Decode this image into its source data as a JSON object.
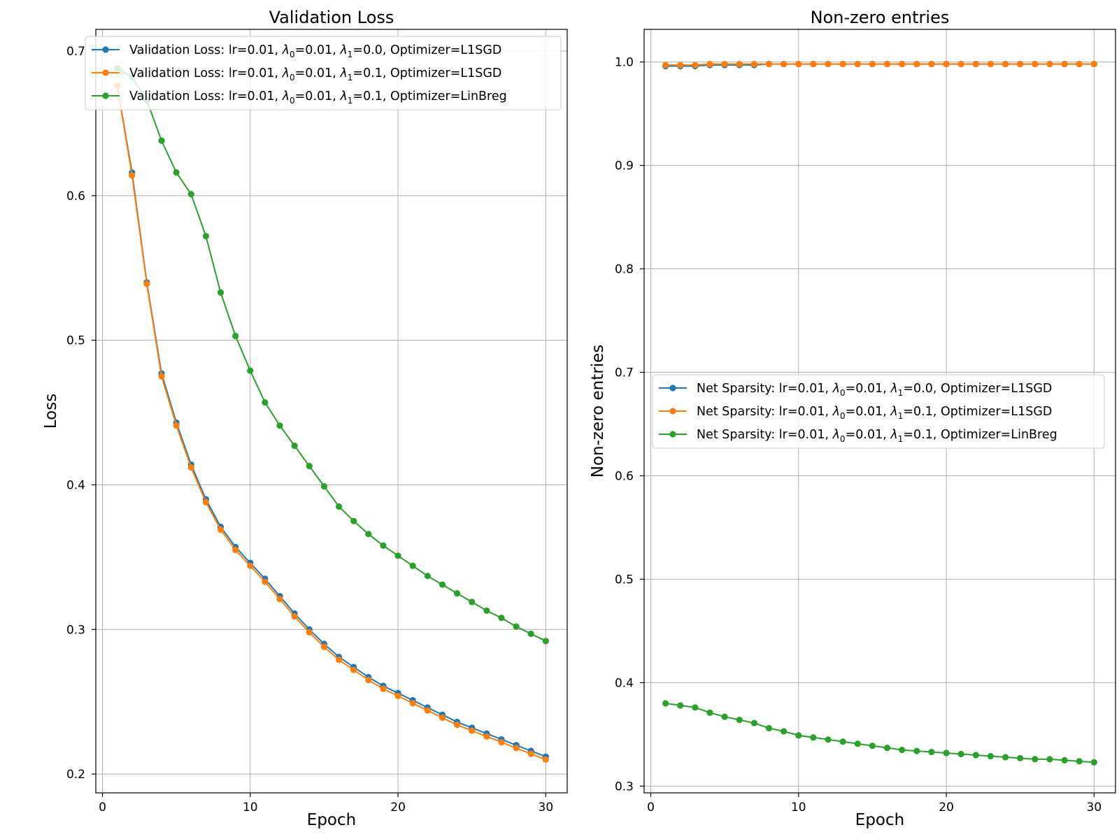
{
  "chart_data": [
    {
      "type": "line",
      "title": "Validation Loss",
      "xlabel": "Epoch",
      "ylabel": "Loss",
      "xlim": [
        -0.45,
        31.45
      ],
      "ylim": [
        0.187,
        0.715
      ],
      "xticks": [
        0,
        10,
        20,
        30
      ],
      "yticks": [
        0.2,
        0.3,
        0.4,
        0.5,
        0.6,
        0.7
      ],
      "ytick_labels": [
        "0.2",
        "0.3",
        "0.4",
        "0.5",
        "0.6",
        "0.7"
      ],
      "grid": true,
      "legend_position": "upper-right",
      "x": [
        1,
        2,
        3,
        4,
        5,
        6,
        7,
        8,
        9,
        10,
        11,
        12,
        13,
        14,
        15,
        16,
        17,
        18,
        19,
        20,
        21,
        22,
        23,
        24,
        25,
        26,
        27,
        28,
        29,
        30
      ],
      "series": [
        {
          "name": "Validation Loss: lr=0.01, λ0=0.01, λ1=0.0, Optimizer=L1SGD",
          "legend": {
            "prefix": "Validation Loss: lr=0.01, ",
            "s1": "0",
            "mid": "=0.01, ",
            "s2": "1",
            "suffix": "=0.0, Optimizer=L1SGD"
          },
          "color": "#1f77b4",
          "values": [
            0.676,
            0.616,
            0.54,
            0.477,
            0.443,
            0.414,
            0.39,
            0.371,
            0.357,
            0.346,
            0.335,
            0.323,
            0.311,
            0.3,
            0.29,
            0.281,
            0.274,
            0.267,
            0.261,
            0.256,
            0.251,
            0.246,
            0.241,
            0.236,
            0.232,
            0.228,
            0.224,
            0.22,
            0.216,
            0.212
          ]
        },
        {
          "name": "Validation Loss: lr=0.01, λ0=0.01, λ1=0.1, Optimizer=L1SGD",
          "legend": {
            "prefix": "Validation Loss: lr=0.01, ",
            "s1": "0",
            "mid": "=0.01, ",
            "s2": "1",
            "suffix": "=0.1, Optimizer=L1SGD"
          },
          "color": "#ff7f0e",
          "values": [
            0.676,
            0.614,
            0.539,
            0.475,
            0.441,
            0.412,
            0.388,
            0.369,
            0.355,
            0.344,
            0.333,
            0.321,
            0.309,
            0.298,
            0.288,
            0.279,
            0.272,
            0.265,
            0.259,
            0.254,
            0.249,
            0.244,
            0.239,
            0.234,
            0.23,
            0.226,
            0.222,
            0.218,
            0.214,
            0.21
          ]
        },
        {
          "name": "Validation Loss: lr=0.01, λ0=0.01, λ1=0.1, Optimizer=LinBreg",
          "legend": {
            "prefix": "Validation Loss: lr=0.01, ",
            "s1": "0",
            "mid": "=0.01, ",
            "s2": "1",
            "suffix": "=0.1, Optimizer=LinBreg"
          },
          "color": "#2ca02c",
          "values": [
            0.688,
            0.682,
            0.666,
            0.638,
            0.616,
            0.601,
            0.572,
            0.533,
            0.503,
            0.479,
            0.457,
            0.441,
            0.427,
            0.413,
            0.399,
            0.385,
            0.375,
            0.366,
            0.358,
            0.351,
            0.344,
            0.337,
            0.331,
            0.325,
            0.319,
            0.313,
            0.308,
            0.302,
            0.297,
            0.292
          ]
        }
      ]
    },
    {
      "type": "line",
      "title": "Non-zero entries",
      "xlabel": "Epoch",
      "ylabel": "Non-zero entries",
      "xlim": [
        -0.45,
        31.45
      ],
      "ylim": [
        0.2935,
        1.0315
      ],
      "xticks": [
        0,
        10,
        20,
        30
      ],
      "yticks": [
        0.3,
        0.4,
        0.5,
        0.6,
        0.7,
        0.8,
        0.9,
        1.0
      ],
      "ytick_labels": [
        "0.3",
        "0.4",
        "0.5",
        "0.6",
        "0.7",
        "0.8",
        "0.9",
        "1.0"
      ],
      "grid": true,
      "legend_position": "center",
      "x": [
        1,
        2,
        3,
        4,
        5,
        6,
        7,
        8,
        9,
        10,
        11,
        12,
        13,
        14,
        15,
        16,
        17,
        18,
        19,
        20,
        21,
        22,
        23,
        24,
        25,
        26,
        27,
        28,
        29,
        30
      ],
      "series": [
        {
          "name": "Net Sparsity: lr=0.01, λ0=0.01, λ1=0.0, Optimizer=L1SGD",
          "legend": {
            "prefix": "Net Sparsity: lr=0.01, ",
            "s1": "0",
            "mid": "=0.01, ",
            "s2": "1",
            "suffix": "=0.0, Optimizer=L1SGD"
          },
          "color": "#1f77b4",
          "values": [
            0.996,
            0.996,
            0.996,
            0.997,
            0.997,
            0.997,
            0.997,
            0.998,
            0.998,
            0.998,
            0.998,
            0.998,
            0.998,
            0.998,
            0.998,
            0.998,
            0.998,
            0.998,
            0.998,
            0.998,
            0.998,
            0.998,
            0.998,
            0.998,
            0.998,
            0.998,
            0.998,
            0.998,
            0.998,
            0.998
          ]
        },
        {
          "name": "Net Sparsity: lr=0.01, λ0=0.01, λ1=0.1, Optimizer=L1SGD",
          "legend": {
            "prefix": "Net Sparsity: lr=0.01, ",
            "s1": "0",
            "mid": "=0.01, ",
            "s2": "1",
            "suffix": "=0.1, Optimizer=L1SGD"
          },
          "color": "#ff7f0e",
          "values": [
            0.997,
            0.997,
            0.997,
            0.998,
            0.998,
            0.998,
            0.998,
            0.998,
            0.998,
            0.998,
            0.998,
            0.998,
            0.998,
            0.998,
            0.998,
            0.998,
            0.998,
            0.998,
            0.998,
            0.998,
            0.998,
            0.998,
            0.998,
            0.998,
            0.998,
            0.998,
            0.998,
            0.998,
            0.998,
            0.998
          ]
        },
        {
          "name": "Net Sparsity: lr=0.01, λ0=0.01, λ1=0.1, Optimizer=LinBreg",
          "legend": {
            "prefix": "Net Sparsity: lr=0.01, ",
            "s1": "0",
            "mid": "=0.01, ",
            "s2": "1",
            "suffix": "=0.1, Optimizer=LinBreg"
          },
          "color": "#2ca02c",
          "values": [
            0.38,
            0.378,
            0.376,
            0.371,
            0.367,
            0.364,
            0.361,
            0.356,
            0.353,
            0.349,
            0.347,
            0.345,
            0.343,
            0.341,
            0.339,
            0.337,
            0.335,
            0.334,
            0.333,
            0.332,
            0.331,
            0.33,
            0.329,
            0.328,
            0.327,
            0.326,
            0.326,
            0.325,
            0.324,
            0.323
          ]
        }
      ]
    }
  ]
}
